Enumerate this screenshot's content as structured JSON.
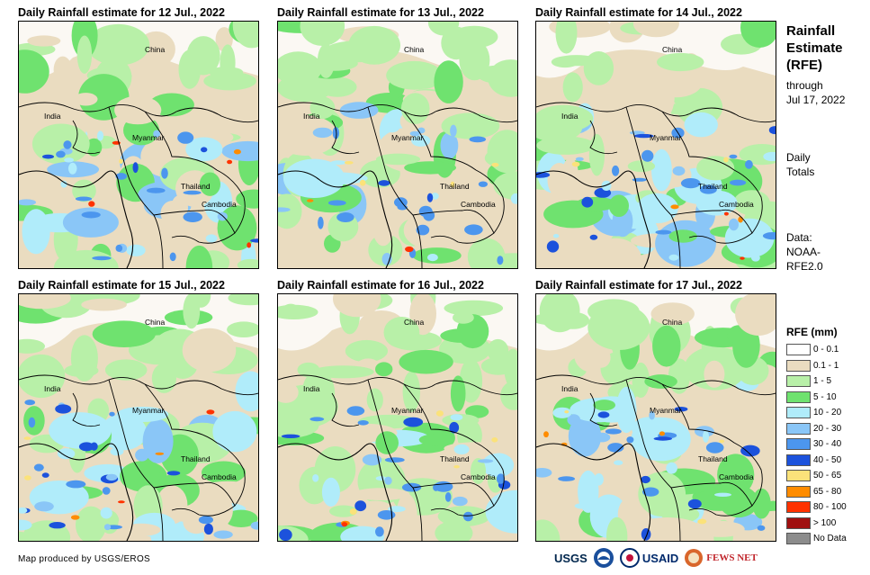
{
  "panels": [
    {
      "title": "Daily Rainfall estimate for 12 Jul., 2022"
    },
    {
      "title": "Daily Rainfall estimate for 13 Jul., 2022"
    },
    {
      "title": "Daily Rainfall estimate for 14 Jul., 2022"
    },
    {
      "title": "Daily Rainfall estimate for 15 Jul., 2022"
    },
    {
      "title": "Daily Rainfall estimate for 16 Jul., 2022"
    },
    {
      "title": "Daily Rainfall estimate for 17 Jul., 2022"
    }
  ],
  "country_labels": {
    "china": "China",
    "india": "India",
    "myanmar": "Myanmar",
    "thailand": "Thailand",
    "cambodia": "Cambodia"
  },
  "sidebar": {
    "title_line1": "Rainfall",
    "title_line2": "Estimate",
    "title_line3": "(RFE)",
    "through": "through",
    "through_date": "Jul 17, 2022",
    "daily": "Daily",
    "totals": "Totals",
    "data_label": "Data:",
    "data_src1": "NOAA-",
    "data_src2": "RFE2.0"
  },
  "legend": {
    "title": "RFE (mm)",
    "items": [
      {
        "label": "0 - 0.1",
        "color": "#ffffff"
      },
      {
        "label": "0.1 - 1",
        "color": "#eadcc0"
      },
      {
        "label": "1 - 5",
        "color": "#b8f0a8"
      },
      {
        "label": "5 - 10",
        "color": "#6fe26f"
      },
      {
        "label": "10 - 20",
        "color": "#b0ecfa"
      },
      {
        "label": "20 - 30",
        "color": "#8ac6f7"
      },
      {
        "label": "30 - 40",
        "color": "#4c96ee"
      },
      {
        "label": "40 - 50",
        "color": "#1c52dc"
      },
      {
        "label": "50 - 65",
        "color": "#fbe27a"
      },
      {
        "label": "65 - 80",
        "color": "#ff8c00"
      },
      {
        "label": "80 - 100",
        "color": "#ff3200"
      },
      {
        "label": "> 100",
        "color": "#a01010"
      },
      {
        "label": "No Data",
        "color": "#8c8c8c"
      }
    ]
  },
  "footer": {
    "credit": "Map produced by USGS/EROS",
    "logo_usgs": "USGS",
    "logo_usaid": "USAID",
    "logo_fews": "FEWS NET"
  }
}
